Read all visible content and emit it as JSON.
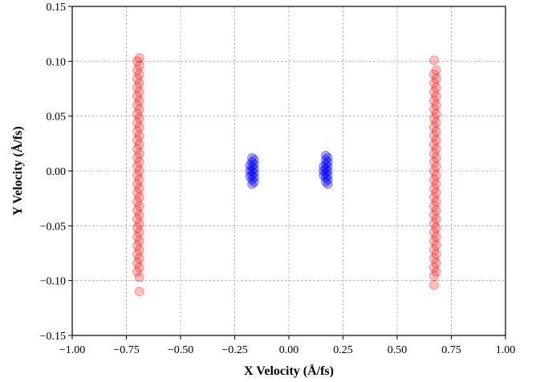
{
  "chart_data": {
    "type": "scatter",
    "xlabel": "X Velocity (Å/fs)",
    "ylabel": "Y Velocity (Å/fs)",
    "xlim": [
      -1.0,
      1.0
    ],
    "ylim": [
      -0.15,
      0.15
    ],
    "x_ticks": [
      "−1.00",
      "−0.75",
      "−0.50",
      "−0.25",
      "0.00",
      "0.25",
      "0.50",
      "0.75",
      "1.00"
    ],
    "y_ticks": [
      "−0.15",
      "−0.10",
      "−0.05",
      "0.00",
      "0.05",
      "0.10",
      "0.15"
    ],
    "grid": true,
    "series": [
      {
        "color": "#ff0000",
        "opacity": 0.25,
        "points": [
          [
            -0.69,
            0.103
          ],
          [
            -0.7,
            0.1
          ],
          [
            -0.69,
            0.096
          ],
          [
            -0.7,
            0.092
          ],
          [
            -0.69,
            0.088
          ],
          [
            -0.7,
            0.084
          ],
          [
            -0.69,
            0.08
          ],
          [
            -0.7,
            0.076
          ],
          [
            -0.69,
            0.072
          ],
          [
            -0.7,
            0.068
          ],
          [
            -0.69,
            0.064
          ],
          [
            -0.7,
            0.06
          ],
          [
            -0.69,
            0.056
          ],
          [
            -0.7,
            0.052
          ],
          [
            -0.69,
            0.048
          ],
          [
            -0.7,
            0.044
          ],
          [
            -0.69,
            0.04
          ],
          [
            -0.7,
            0.036
          ],
          [
            -0.69,
            0.032
          ],
          [
            -0.7,
            0.028
          ],
          [
            -0.69,
            0.024
          ],
          [
            -0.7,
            0.02
          ],
          [
            -0.69,
            0.016
          ],
          [
            -0.7,
            0.012
          ],
          [
            -0.69,
            0.008
          ],
          [
            -0.7,
            0.004
          ],
          [
            -0.69,
            0.0
          ],
          [
            -0.7,
            -0.004
          ],
          [
            -0.69,
            -0.008
          ],
          [
            -0.7,
            -0.012
          ],
          [
            -0.69,
            -0.016
          ],
          [
            -0.7,
            -0.02
          ],
          [
            -0.69,
            -0.024
          ],
          [
            -0.7,
            -0.028
          ],
          [
            -0.69,
            -0.032
          ],
          [
            -0.7,
            -0.036
          ],
          [
            -0.69,
            -0.04
          ],
          [
            -0.7,
            -0.044
          ],
          [
            -0.69,
            -0.048
          ],
          [
            -0.7,
            -0.052
          ],
          [
            -0.69,
            -0.056
          ],
          [
            -0.7,
            -0.06
          ],
          [
            -0.69,
            -0.064
          ],
          [
            -0.7,
            -0.068
          ],
          [
            -0.69,
            -0.072
          ],
          [
            -0.7,
            -0.076
          ],
          [
            -0.69,
            -0.08
          ],
          [
            -0.7,
            -0.084
          ],
          [
            -0.69,
            -0.088
          ],
          [
            -0.7,
            -0.092
          ],
          [
            -0.69,
            -0.097
          ],
          [
            -0.69,
            -0.11
          ],
          [
            0.67,
            0.101
          ],
          [
            0.68,
            0.092
          ],
          [
            0.67,
            0.088
          ],
          [
            0.68,
            0.084
          ],
          [
            0.67,
            0.08
          ],
          [
            0.68,
            0.076
          ],
          [
            0.67,
            0.072
          ],
          [
            0.68,
            0.068
          ],
          [
            0.67,
            0.064
          ],
          [
            0.68,
            0.06
          ],
          [
            0.67,
            0.056
          ],
          [
            0.68,
            0.052
          ],
          [
            0.67,
            0.048
          ],
          [
            0.68,
            0.044
          ],
          [
            0.67,
            0.04
          ],
          [
            0.68,
            0.036
          ],
          [
            0.67,
            0.032
          ],
          [
            0.68,
            0.028
          ],
          [
            0.67,
            0.024
          ],
          [
            0.68,
            0.02
          ],
          [
            0.67,
            0.016
          ],
          [
            0.68,
            0.012
          ],
          [
            0.67,
            0.008
          ],
          [
            0.68,
            0.004
          ],
          [
            0.67,
            0.0
          ],
          [
            0.68,
            -0.004
          ],
          [
            0.67,
            -0.008
          ],
          [
            0.68,
            -0.012
          ],
          [
            0.67,
            -0.016
          ],
          [
            0.68,
            -0.02
          ],
          [
            0.67,
            -0.024
          ],
          [
            0.68,
            -0.028
          ],
          [
            0.67,
            -0.032
          ],
          [
            0.68,
            -0.036
          ],
          [
            0.67,
            -0.04
          ],
          [
            0.68,
            -0.044
          ],
          [
            0.67,
            -0.048
          ],
          [
            0.68,
            -0.052
          ],
          [
            0.67,
            -0.056
          ],
          [
            0.68,
            -0.06
          ],
          [
            0.67,
            -0.064
          ],
          [
            0.68,
            -0.068
          ],
          [
            0.67,
            -0.072
          ],
          [
            0.68,
            -0.076
          ],
          [
            0.67,
            -0.08
          ],
          [
            0.68,
            -0.084
          ],
          [
            0.67,
            -0.088
          ],
          [
            0.68,
            -0.092
          ],
          [
            0.67,
            -0.096
          ],
          [
            0.67,
            -0.104
          ]
        ]
      },
      {
        "color": "#0000ff",
        "opacity": 0.3,
        "points": [
          [
            -0.17,
            0.012
          ],
          [
            -0.16,
            0.01
          ],
          [
            -0.17,
            0.008
          ],
          [
            -0.16,
            0.006
          ],
          [
            -0.17,
            0.004
          ],
          [
            -0.16,
            0.002
          ],
          [
            -0.17,
            0.0
          ],
          [
            -0.16,
            -0.002
          ],
          [
            -0.17,
            -0.004
          ],
          [
            -0.16,
            -0.006
          ],
          [
            -0.17,
            -0.008
          ],
          [
            -0.16,
            -0.01
          ],
          [
            -0.17,
            -0.012
          ],
          [
            -0.18,
            0.005
          ],
          [
            -0.18,
            -0.005
          ],
          [
            -0.18,
            0.0
          ],
          [
            0.17,
            0.014
          ],
          [
            0.18,
            0.012
          ],
          [
            0.17,
            0.01
          ],
          [
            0.18,
            0.008
          ],
          [
            0.17,
            0.006
          ],
          [
            0.18,
            0.004
          ],
          [
            0.17,
            0.002
          ],
          [
            0.18,
            0.0
          ],
          [
            0.17,
            -0.002
          ],
          [
            0.18,
            -0.004
          ],
          [
            0.17,
            -0.006
          ],
          [
            0.18,
            -0.008
          ],
          [
            0.17,
            -0.01
          ],
          [
            0.18,
            -0.012
          ],
          [
            0.16,
            0.004
          ],
          [
            0.16,
            -0.004
          ],
          [
            0.16,
            0.0
          ]
        ]
      }
    ]
  }
}
